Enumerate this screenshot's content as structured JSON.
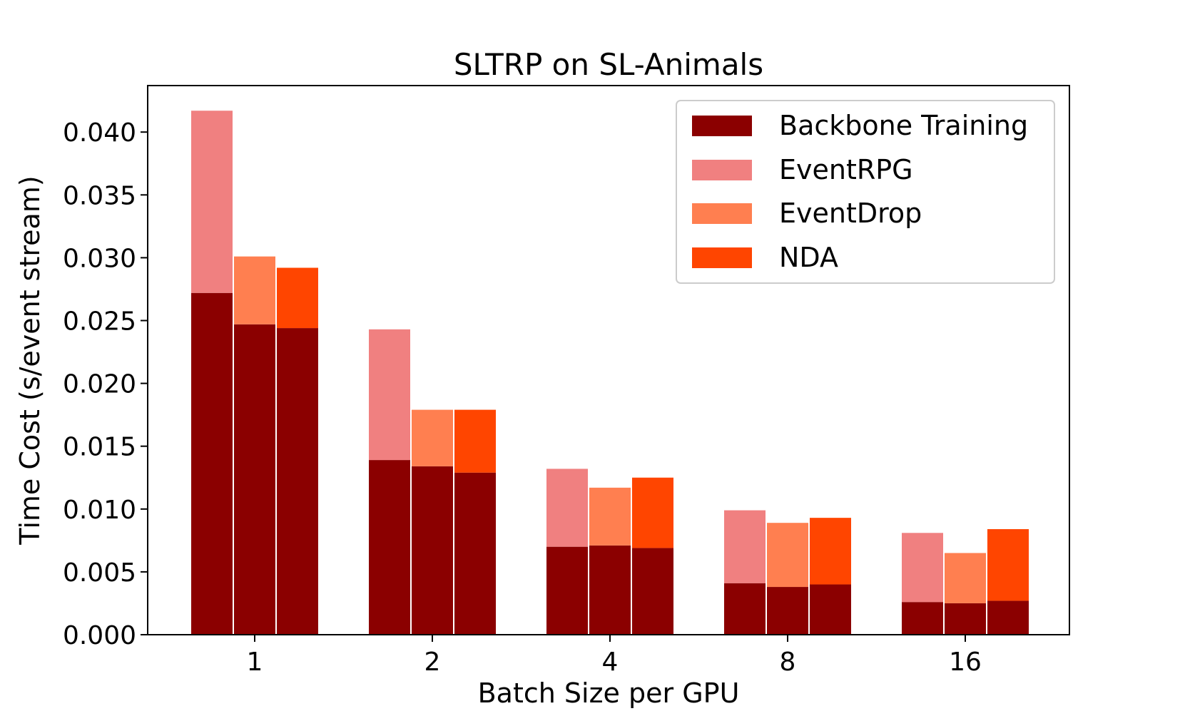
{
  "chart_data": {
    "type": "bar",
    "title": "SLTRP on SL-Animals",
    "xlabel": "Batch Size per GPU",
    "ylabel": "Time Cost (s/event stream)",
    "ylim": [
      0,
      0.0437
    ],
    "yticks": [
      "0.000",
      "0.005",
      "0.010",
      "0.015",
      "0.020",
      "0.025",
      "0.030",
      "0.035",
      "0.040"
    ],
    "ytick_values": [
      0,
      0.005,
      0.01,
      0.015,
      0.02,
      0.025,
      0.03,
      0.035,
      0.04
    ],
    "categories": [
      "1",
      "2",
      "4",
      "8",
      "16"
    ],
    "legend_position": "top-right",
    "grid": false,
    "stacked": true,
    "colors": {
      "Backbone Training": "#8b0000",
      "EventRPG": "#f08080",
      "EventDrop": "#ff7f50",
      "NDA": "#ff4500"
    },
    "legend": [
      "Backbone Training",
      "EventRPG",
      "EventDrop",
      "NDA"
    ],
    "methods": [
      {
        "name": "EventRPG",
        "backbone": [
          0.0272,
          0.0139,
          0.007,
          0.0041,
          0.0026
        ],
        "total": [
          0.0417,
          0.0243,
          0.0132,
          0.0099,
          0.0081
        ]
      },
      {
        "name": "EventDrop",
        "backbone": [
          0.0247,
          0.0134,
          0.0071,
          0.0038,
          0.0025
        ],
        "total": [
          0.0301,
          0.0179,
          0.0117,
          0.0089,
          0.0065
        ]
      },
      {
        "name": "NDA",
        "backbone": [
          0.0244,
          0.0129,
          0.0069,
          0.004,
          0.0027
        ],
        "total": [
          0.0292,
          0.0179,
          0.0125,
          0.0093,
          0.0084
        ]
      }
    ]
  }
}
